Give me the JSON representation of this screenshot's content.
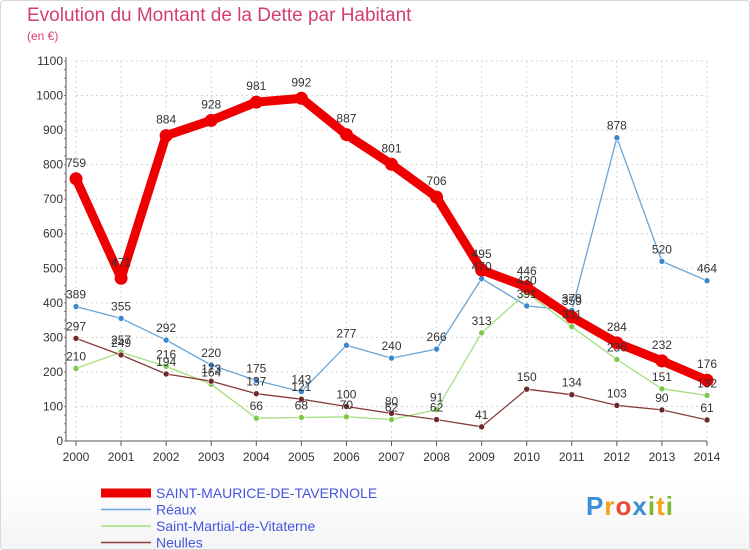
{
  "title": "Evolution du Montant de la Dette par Habitant",
  "subtitle": "(en €)",
  "logo_text": "Proxiti",
  "colors": {
    "title": "#d33f6b",
    "legend_text": "#4455dd",
    "logo_p": "#3a8fd8",
    "logo_r": "#f2a21b",
    "logo_o": "#e94b3c",
    "logo_x": "#3a8fd8",
    "logo_i": "#7dbb2e",
    "logo_t": "#f2a21b",
    "logo_i2": "#7dbb2e"
  },
  "chart_data": {
    "type": "line",
    "title": "Evolution du Montant de la Dette par Habitant",
    "ylabel": "(en €)",
    "x": [
      "2000",
      "2001",
      "2002",
      "2003",
      "2004",
      "2005",
      "2006",
      "2007",
      "2008",
      "2009",
      "2010",
      "2011",
      "2012",
      "2013",
      "2014"
    ],
    "ylim": [
      0,
      1100
    ],
    "yticks": [
      0,
      100,
      200,
      300,
      400,
      500,
      600,
      700,
      800,
      900,
      1000,
      1100
    ],
    "grid": true,
    "legend_position": "bottom-left",
    "series": [
      {
        "name": "SAINT-MAURICE-DE-TAVERNOLE",
        "color": "#ee0000",
        "marker": "#ee0000",
        "values": [
          759,
          471,
          884,
          928,
          981,
          992,
          887,
          801,
          706,
          495,
          446,
          359,
          284,
          232,
          176
        ]
      },
      {
        "name": "Réaux",
        "color": "#6aa5d8",
        "marker": "#3d87cc",
        "values": [
          389,
          355,
          292,
          220,
          175,
          143,
          277,
          240,
          266,
          470,
          391,
          378,
          878,
          520,
          464
        ]
      },
      {
        "name": "Saint-Martial-de-Vitaterne",
        "color": "#a3e07e",
        "marker": "#7cc94d",
        "values": [
          210,
          257,
          216,
          164,
          66,
          68,
          70,
          62,
          91,
          313,
          430,
          331,
          236,
          151,
          132
        ]
      },
      {
        "name": "Neulles",
        "color": "#8a3d3d",
        "marker": "#6e2a2a",
        "values": [
          297,
          249,
          194,
          173,
          137,
          121,
          100,
          80,
          62,
          41,
          150,
          134,
          103,
          90,
          61
        ]
      }
    ]
  }
}
